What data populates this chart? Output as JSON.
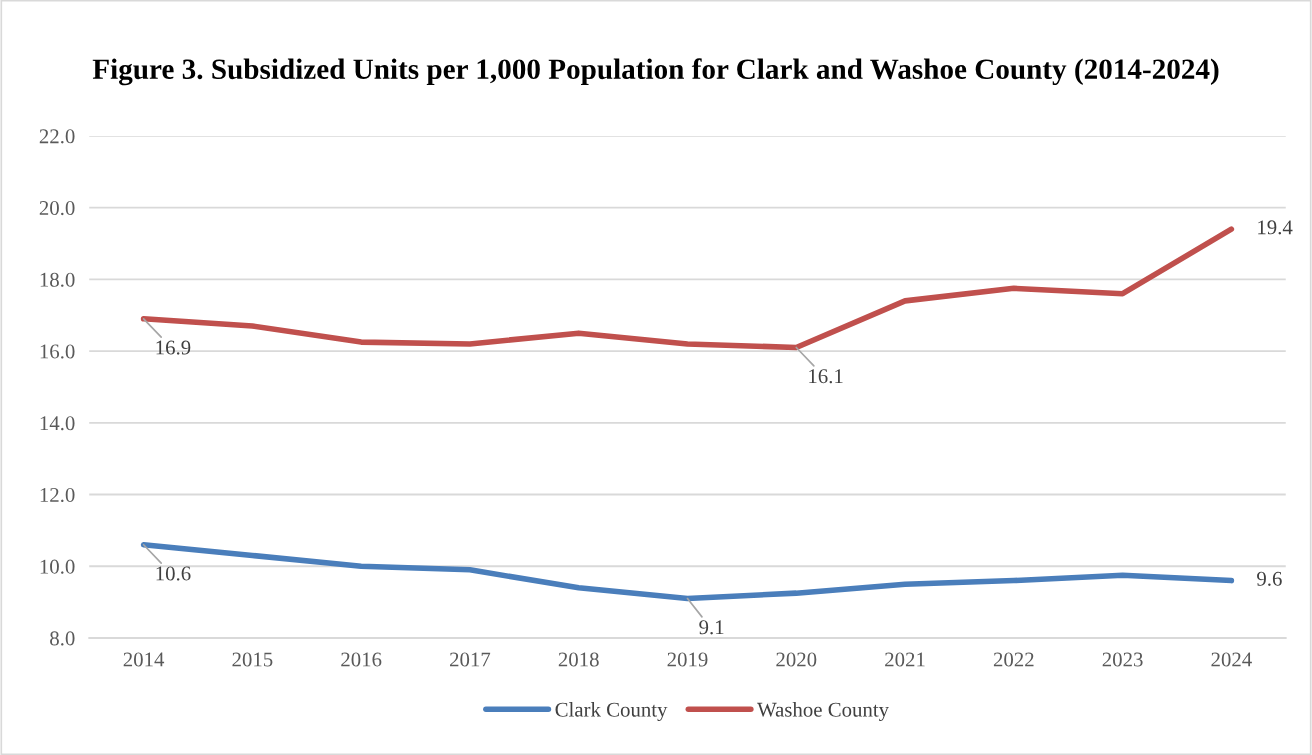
{
  "chart_data": {
    "type": "line",
    "title": "Figure 3. Subsidized Units per 1,000 Population for Clark and Washoe County (2014-2024)",
    "categories": [
      "2014",
      "2015",
      "2016",
      "2017",
      "2018",
      "2019",
      "2020",
      "2021",
      "2022",
      "2023",
      "2024"
    ],
    "series": [
      {
        "name": "Clark County",
        "color": "#4a7ebb",
        "values": [
          10.6,
          10.3,
          10.0,
          9.9,
          9.4,
          9.1,
          9.25,
          9.5,
          9.6,
          9.75,
          9.6
        ],
        "value_labels": [
          "10.6",
          null,
          null,
          null,
          null,
          "9.1",
          null,
          null,
          null,
          null,
          "9.6"
        ]
      },
      {
        "name": "Washoe County",
        "color": "#c0504d",
        "values": [
          16.9,
          16.7,
          16.25,
          16.2,
          16.5,
          16.2,
          16.1,
          17.4,
          17.75,
          17.6,
          19.4
        ],
        "value_labels": [
          "16.9",
          null,
          null,
          null,
          null,
          null,
          "16.1",
          null,
          null,
          null,
          "19.4"
        ]
      }
    ],
    "ylim": [
      8,
      22
    ],
    "yticks": [
      {
        "value": 8,
        "label": "8.0"
      },
      {
        "value": 10,
        "label": "10.0"
      },
      {
        "value": 12,
        "label": "12.0"
      },
      {
        "value": 14,
        "label": "14.0"
      },
      {
        "value": 16,
        "label": "16.0"
      },
      {
        "value": 18,
        "label": "18.0"
      },
      {
        "value": 20,
        "label": "20.0"
      },
      {
        "value": 22,
        "label": "22.0"
      }
    ],
    "grid": "y",
    "legend": "bottom",
    "marker": "none",
    "line_style": "solid"
  }
}
